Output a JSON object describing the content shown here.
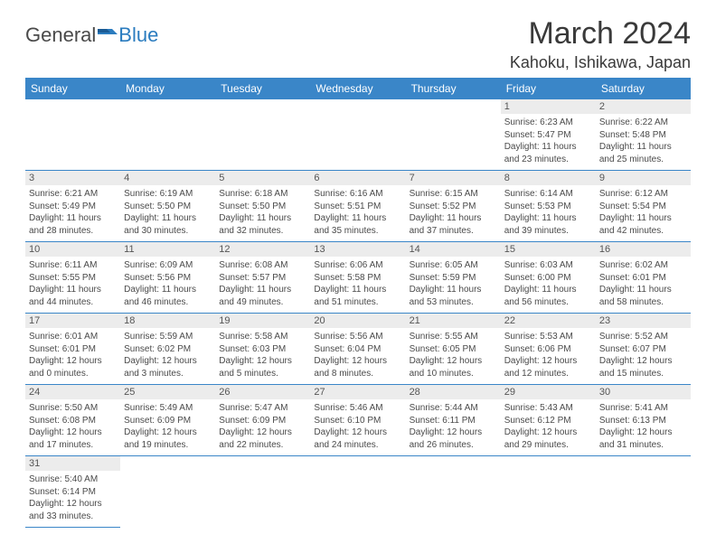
{
  "logo": {
    "text1": "General",
    "text2": "Blue"
  },
  "title": "March 2024",
  "location": "Kahoku, Ishikawa, Japan",
  "colors": {
    "headerBg": "#3a86c8",
    "headerText": "#ffffff",
    "dayNumBg": "#ececec",
    "border": "#3a86c8"
  },
  "dayNames": [
    "Sunday",
    "Monday",
    "Tuesday",
    "Wednesday",
    "Thursday",
    "Friday",
    "Saturday"
  ],
  "weeks": [
    [
      null,
      null,
      null,
      null,
      null,
      {
        "n": "1",
        "sr": "Sunrise: 6:23 AM",
        "ss": "Sunset: 5:47 PM",
        "d1": "Daylight: 11 hours",
        "d2": "and 23 minutes."
      },
      {
        "n": "2",
        "sr": "Sunrise: 6:22 AM",
        "ss": "Sunset: 5:48 PM",
        "d1": "Daylight: 11 hours",
        "d2": "and 25 minutes."
      }
    ],
    [
      {
        "n": "3",
        "sr": "Sunrise: 6:21 AM",
        "ss": "Sunset: 5:49 PM",
        "d1": "Daylight: 11 hours",
        "d2": "and 28 minutes."
      },
      {
        "n": "4",
        "sr": "Sunrise: 6:19 AM",
        "ss": "Sunset: 5:50 PM",
        "d1": "Daylight: 11 hours",
        "d2": "and 30 minutes."
      },
      {
        "n": "5",
        "sr": "Sunrise: 6:18 AM",
        "ss": "Sunset: 5:50 PM",
        "d1": "Daylight: 11 hours",
        "d2": "and 32 minutes."
      },
      {
        "n": "6",
        "sr": "Sunrise: 6:16 AM",
        "ss": "Sunset: 5:51 PM",
        "d1": "Daylight: 11 hours",
        "d2": "and 35 minutes."
      },
      {
        "n": "7",
        "sr": "Sunrise: 6:15 AM",
        "ss": "Sunset: 5:52 PM",
        "d1": "Daylight: 11 hours",
        "d2": "and 37 minutes."
      },
      {
        "n": "8",
        "sr": "Sunrise: 6:14 AM",
        "ss": "Sunset: 5:53 PM",
        "d1": "Daylight: 11 hours",
        "d2": "and 39 minutes."
      },
      {
        "n": "9",
        "sr": "Sunrise: 6:12 AM",
        "ss": "Sunset: 5:54 PM",
        "d1": "Daylight: 11 hours",
        "d2": "and 42 minutes."
      }
    ],
    [
      {
        "n": "10",
        "sr": "Sunrise: 6:11 AM",
        "ss": "Sunset: 5:55 PM",
        "d1": "Daylight: 11 hours",
        "d2": "and 44 minutes."
      },
      {
        "n": "11",
        "sr": "Sunrise: 6:09 AM",
        "ss": "Sunset: 5:56 PM",
        "d1": "Daylight: 11 hours",
        "d2": "and 46 minutes."
      },
      {
        "n": "12",
        "sr": "Sunrise: 6:08 AM",
        "ss": "Sunset: 5:57 PM",
        "d1": "Daylight: 11 hours",
        "d2": "and 49 minutes."
      },
      {
        "n": "13",
        "sr": "Sunrise: 6:06 AM",
        "ss": "Sunset: 5:58 PM",
        "d1": "Daylight: 11 hours",
        "d2": "and 51 minutes."
      },
      {
        "n": "14",
        "sr": "Sunrise: 6:05 AM",
        "ss": "Sunset: 5:59 PM",
        "d1": "Daylight: 11 hours",
        "d2": "and 53 minutes."
      },
      {
        "n": "15",
        "sr": "Sunrise: 6:03 AM",
        "ss": "Sunset: 6:00 PM",
        "d1": "Daylight: 11 hours",
        "d2": "and 56 minutes."
      },
      {
        "n": "16",
        "sr": "Sunrise: 6:02 AM",
        "ss": "Sunset: 6:01 PM",
        "d1": "Daylight: 11 hours",
        "d2": "and 58 minutes."
      }
    ],
    [
      {
        "n": "17",
        "sr": "Sunrise: 6:01 AM",
        "ss": "Sunset: 6:01 PM",
        "d1": "Daylight: 12 hours",
        "d2": "and 0 minutes."
      },
      {
        "n": "18",
        "sr": "Sunrise: 5:59 AM",
        "ss": "Sunset: 6:02 PM",
        "d1": "Daylight: 12 hours",
        "d2": "and 3 minutes."
      },
      {
        "n": "19",
        "sr": "Sunrise: 5:58 AM",
        "ss": "Sunset: 6:03 PM",
        "d1": "Daylight: 12 hours",
        "d2": "and 5 minutes."
      },
      {
        "n": "20",
        "sr": "Sunrise: 5:56 AM",
        "ss": "Sunset: 6:04 PM",
        "d1": "Daylight: 12 hours",
        "d2": "and 8 minutes."
      },
      {
        "n": "21",
        "sr": "Sunrise: 5:55 AM",
        "ss": "Sunset: 6:05 PM",
        "d1": "Daylight: 12 hours",
        "d2": "and 10 minutes."
      },
      {
        "n": "22",
        "sr": "Sunrise: 5:53 AM",
        "ss": "Sunset: 6:06 PM",
        "d1": "Daylight: 12 hours",
        "d2": "and 12 minutes."
      },
      {
        "n": "23",
        "sr": "Sunrise: 5:52 AM",
        "ss": "Sunset: 6:07 PM",
        "d1": "Daylight: 12 hours",
        "d2": "and 15 minutes."
      }
    ],
    [
      {
        "n": "24",
        "sr": "Sunrise: 5:50 AM",
        "ss": "Sunset: 6:08 PM",
        "d1": "Daylight: 12 hours",
        "d2": "and 17 minutes."
      },
      {
        "n": "25",
        "sr": "Sunrise: 5:49 AM",
        "ss": "Sunset: 6:09 PM",
        "d1": "Daylight: 12 hours",
        "d2": "and 19 minutes."
      },
      {
        "n": "26",
        "sr": "Sunrise: 5:47 AM",
        "ss": "Sunset: 6:09 PM",
        "d1": "Daylight: 12 hours",
        "d2": "and 22 minutes."
      },
      {
        "n": "27",
        "sr": "Sunrise: 5:46 AM",
        "ss": "Sunset: 6:10 PM",
        "d1": "Daylight: 12 hours",
        "d2": "and 24 minutes."
      },
      {
        "n": "28",
        "sr": "Sunrise: 5:44 AM",
        "ss": "Sunset: 6:11 PM",
        "d1": "Daylight: 12 hours",
        "d2": "and 26 minutes."
      },
      {
        "n": "29",
        "sr": "Sunrise: 5:43 AM",
        "ss": "Sunset: 6:12 PM",
        "d1": "Daylight: 12 hours",
        "d2": "and 29 minutes."
      },
      {
        "n": "30",
        "sr": "Sunrise: 5:41 AM",
        "ss": "Sunset: 6:13 PM",
        "d1": "Daylight: 12 hours",
        "d2": "and 31 minutes."
      }
    ],
    [
      {
        "n": "31",
        "sr": "Sunrise: 5:40 AM",
        "ss": "Sunset: 6:14 PM",
        "d1": "Daylight: 12 hours",
        "d2": "and 33 minutes."
      },
      null,
      null,
      null,
      null,
      null,
      null
    ]
  ]
}
